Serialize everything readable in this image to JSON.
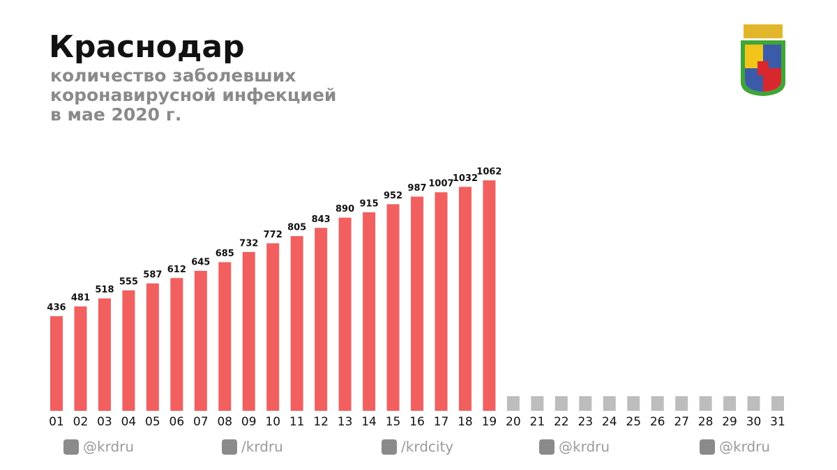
{
  "chart_data": {
    "type": "bar",
    "title": "Краснодар",
    "subtitle": [
      "количество заболевших",
      "коронавирусной инфекцией",
      "в мае 2020 г."
    ],
    "categories": [
      "01",
      "02",
      "03",
      "04",
      "05",
      "06",
      "07",
      "08",
      "09",
      "10",
      "11",
      "12",
      "13",
      "14",
      "15",
      "16",
      "17",
      "18",
      "19",
      "20",
      "21",
      "22",
      "23",
      "24",
      "25",
      "26",
      "27",
      "28",
      "29",
      "30",
      "31"
    ],
    "values": [
      436,
      481,
      518,
      555,
      587,
      612,
      645,
      685,
      732,
      772,
      805,
      843,
      890,
      915,
      952,
      987,
      1007,
      1032,
      1062,
      null,
      null,
      null,
      null,
      null,
      null,
      null,
      null,
      null,
      null,
      null,
      null
    ],
    "color": "#f25f5f",
    "placeholder_color": "#bdbdbd",
    "footer": [
      "@krdru",
      "/krdru",
      "/krdcity",
      "@krdru",
      "@krdru"
    ]
  }
}
